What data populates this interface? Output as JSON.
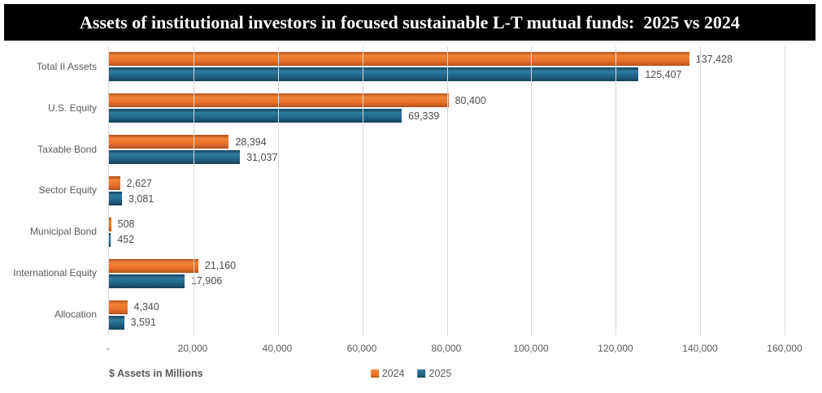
{
  "title": "Assets of institutional investors in focused sustainable L-T mutual funds:  2025 vs 2024",
  "chart_data": {
    "type": "bar",
    "orientation": "horizontal",
    "title": "Assets of institutional investors in focused sustainable L-T mutual funds:  2025 vs 2024",
    "categories": [
      "Total II Assets",
      "U.S. Equity",
      "Taxable Bond",
      "Sector Equity",
      "Municipal Bond",
      "International Equity",
      "Allocation"
    ],
    "series": [
      {
        "name": "2024",
        "values": [
          137428,
          80400,
          28394,
          2627,
          508,
          21160,
          4340
        ],
        "value_labels": [
          "137,428",
          "80,400",
          "28,394",
          "2,627",
          "508",
          "21,160",
          "4,340"
        ],
        "color": "#E8702A",
        "color_light": "#F28437",
        "color_dark": "#B5521C"
      },
      {
        "name": "2025",
        "values": [
          125407,
          69339,
          31037,
          3081,
          452,
          17906,
          3591
        ],
        "value_labels": [
          "125,407",
          "69,339",
          "31,037",
          "3,081",
          "452",
          "17,906",
          "3,591"
        ],
        "color": "#1F6287",
        "color_light": "#2F7BA0",
        "color_dark": "#153F59"
      }
    ],
    "xlabel": "$ Assets in Millions",
    "x_ticks": [
      "-",
      "20,000",
      "40,000",
      "60,000",
      "80,000",
      "100,000",
      "120,000",
      "140,000",
      "160,000"
    ],
    "xlim": [
      0,
      160000
    ],
    "grid": true,
    "gridline_color": "#d9d9d9",
    "legend_position": "bottom-center",
    "title_bar_bg": "#000000",
    "title_bar_fg": "#ffffff"
  }
}
